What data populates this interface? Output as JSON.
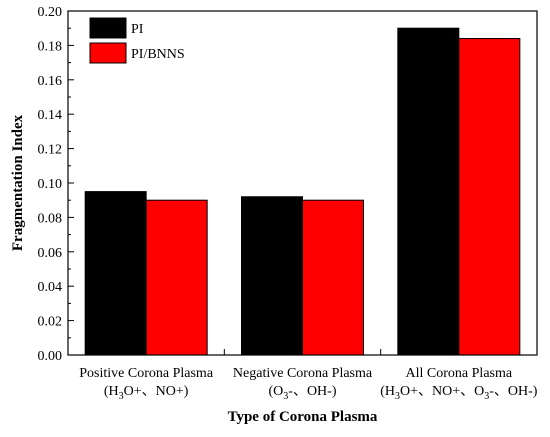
{
  "chart_data": {
    "type": "bar",
    "title": "",
    "xlabel": "Type of Corona Plasma",
    "ylabel": "Fragmentation Index",
    "ylim": [
      0,
      0.2
    ],
    "yticks": [
      "0.00",
      "0.02",
      "0.04",
      "0.06",
      "0.08",
      "0.10",
      "0.12",
      "0.14",
      "0.16",
      "0.18",
      "0.20"
    ],
    "categories": [
      "Positive Corona Plasma (H3O+、NO+)",
      "Negative Corona Plasma (O3-、OH-)",
      "All Corona Plasma (H3O+、NO+、O3-、OH-)"
    ],
    "category_labels": [
      {
        "line1": "Positive Corona Plasma",
        "line2": [
          {
            "t": "(H"
          },
          {
            "t": "3",
            "sub": true
          },
          {
            "t": "O+、NO+)"
          }
        ]
      },
      {
        "line1": "Negative Corona Plasma",
        "line2": [
          {
            "t": "(O"
          },
          {
            "t": "3",
            "sub": true
          },
          {
            "t": "-、OH-)"
          }
        ]
      },
      {
        "line1": "All Corona Plasma",
        "line2": [
          {
            "t": "(H"
          },
          {
            "t": "3",
            "sub": true
          },
          {
            "t": "O+、NO+、O"
          },
          {
            "t": "3",
            "sub": true
          },
          {
            "t": "-、OH-)"
          }
        ]
      }
    ],
    "series": [
      {
        "name": "PI",
        "color": "#000000",
        "values": [
          0.095,
          0.092,
          0.19
        ]
      },
      {
        "name": "PI/BNNS",
        "color": "#ff0000",
        "values": [
          0.09,
          0.09,
          0.184
        ]
      }
    ],
    "legend_position": "top-left",
    "grid": false
  }
}
